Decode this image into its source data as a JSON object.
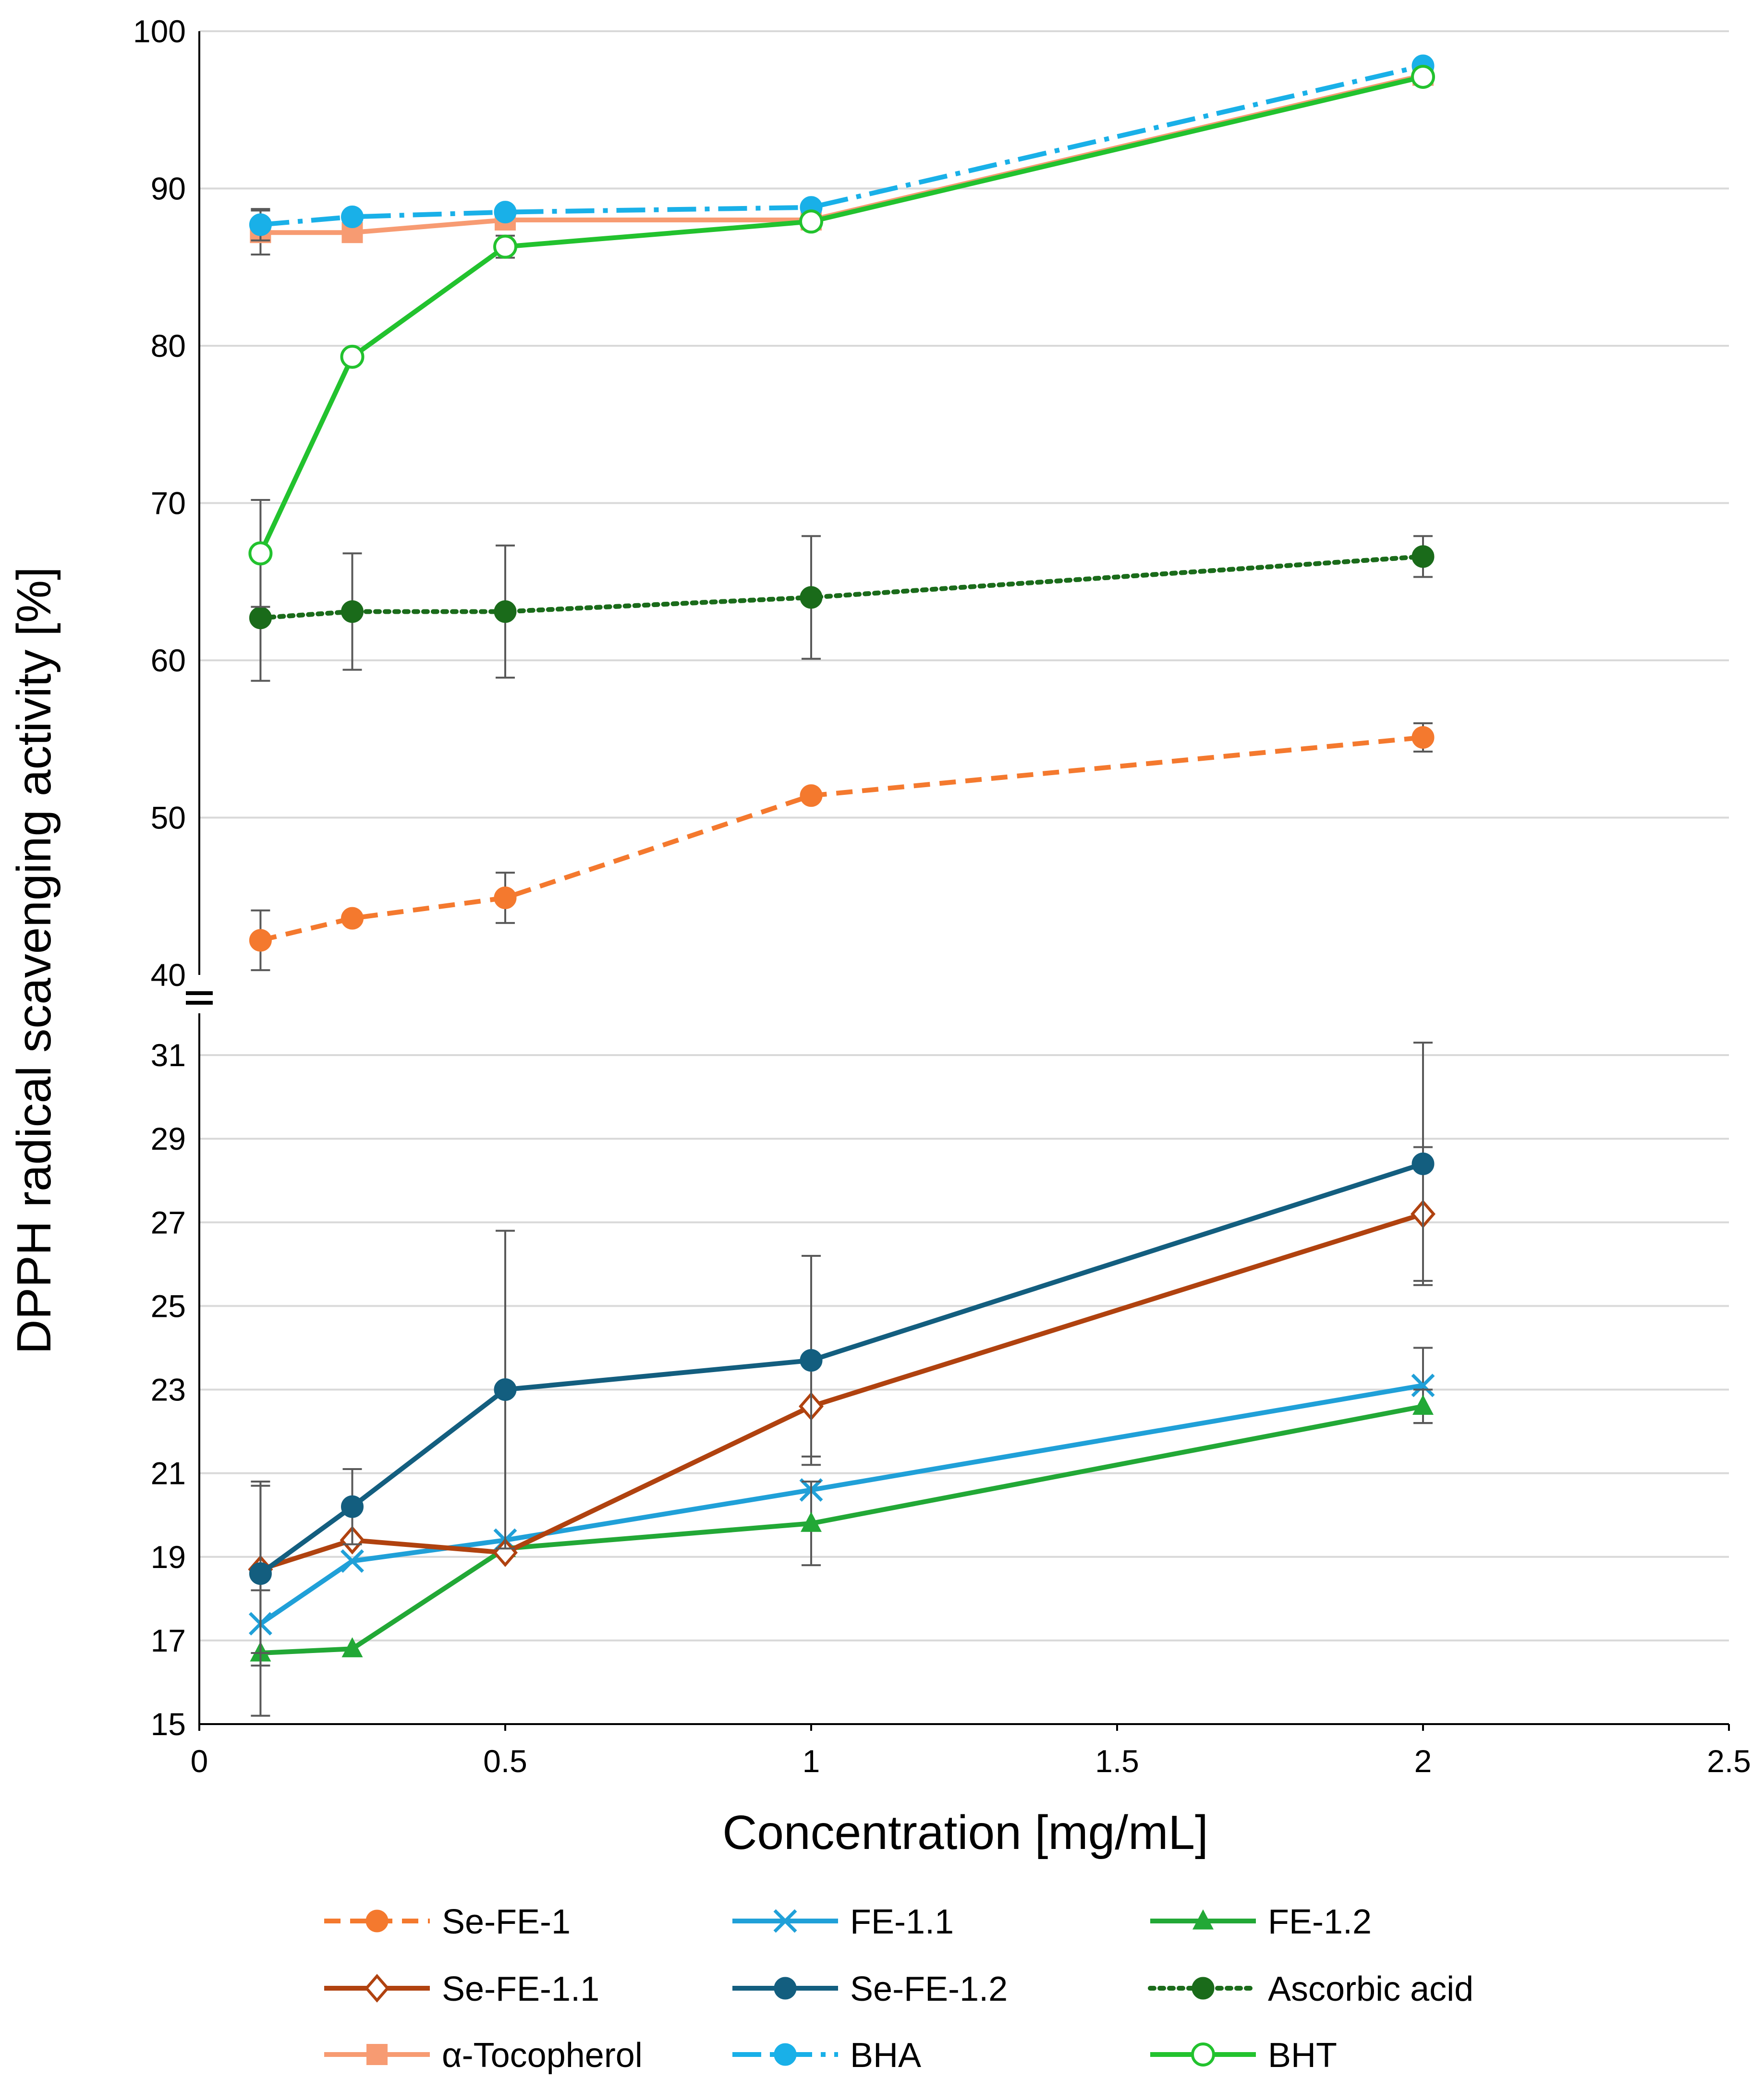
{
  "chart_data": {
    "type": "line",
    "xlabel": "Concentration [mg/mL]",
    "ylabel": "DPPH radical scavenging activity [%]",
    "xlim": [
      0,
      2.5
    ],
    "x_ticks": [
      "0",
      "0.5",
      "1",
      "1.5",
      "2",
      "2.5"
    ],
    "y_axis_break": true,
    "upper_panel": {
      "ylim": [
        40,
        100
      ],
      "y_ticks": [
        "40",
        "50",
        "60",
        "70",
        "80",
        "90",
        "100"
      ],
      "series": [
        {
          "name": "Se-FE-1",
          "color": "#f4792e",
          "line": "dashed",
          "marker": "circle-filled",
          "x": [
            0.1,
            0.25,
            0.5,
            1,
            2
          ],
          "y": [
            42.2,
            43.6,
            44.9,
            51.4,
            55.1
          ],
          "err": [
            1.9,
            0.0,
            1.6,
            0.0,
            0.9
          ]
        },
        {
          "name": "Ascorbic acid",
          "color": "#1a6b1a",
          "line": "dotted",
          "marker": "circle-filled",
          "x": [
            0.1,
            0.25,
            0.5,
            1,
            2
          ],
          "y": [
            62.7,
            63.1,
            63.1,
            64.0,
            66.6
          ],
          "err": [
            4.0,
            3.7,
            4.2,
            3.9,
            1.3
          ]
        },
        {
          "name": "α-Tocopherol",
          "color": "#f79b72",
          "line": "solid",
          "marker": "square-filled",
          "x": [
            0.1,
            0.25,
            0.5,
            1,
            2
          ],
          "y": [
            87.2,
            87.2,
            88.0,
            88.0,
            97.2
          ],
          "err": [
            1.4,
            0.0,
            0.0,
            0.0,
            0.0
          ]
        },
        {
          "name": "BHA",
          "color": "#19b0e8",
          "line": "dashdot",
          "marker": "circle-filled",
          "x": [
            0.1,
            0.25,
            0.5,
            1,
            2
          ],
          "y": [
            87.7,
            88.2,
            88.5,
            88.8,
            97.8
          ],
          "err": [
            1.0,
            0.0,
            0.0,
            0.0,
            0.0
          ]
        },
        {
          "name": "BHT",
          "color": "#22c22e",
          "line": "solid",
          "marker": "circle-open",
          "x": [
            0.1,
            0.25,
            0.5,
            1,
            2
          ],
          "y": [
            66.8,
            79.3,
            86.3,
            87.9,
            97.1
          ],
          "err": [
            3.4,
            0.0,
            0.7,
            0.0,
            0.0
          ]
        }
      ]
    },
    "lower_panel": {
      "ylim": [
        15,
        32
      ],
      "y_ticks": [
        "15",
        "17",
        "19",
        "21",
        "23",
        "25",
        "27",
        "29",
        "31"
      ],
      "series": [
        {
          "name": "FE-1.1",
          "color": "#20a0d8",
          "line": "solid",
          "marker": "x",
          "x": [
            0.1,
            0.25,
            0.5,
            1,
            2
          ],
          "y": [
            17.4,
            18.9,
            19.4,
            20.6,
            23.1
          ],
          "err": [
            0.0,
            0.0,
            0.0,
            0.0,
            0.9
          ]
        },
        {
          "name": "FE-1.2",
          "color": "#22a836",
          "line": "solid",
          "marker": "triangle-filled",
          "x": [
            0.1,
            0.25,
            0.5,
            1,
            2
          ],
          "y": [
            16.7,
            16.8,
            19.2,
            19.8,
            22.6
          ],
          "err": [
            1.5,
            0.0,
            0.0,
            1.0,
            0.4
          ]
        },
        {
          "name": "Se-FE-1.1",
          "color": "#b0420f",
          "line": "solid",
          "marker": "diamond-open",
          "x": [
            0.1,
            0.25,
            0.5,
            1,
            2
          ],
          "y": [
            18.7,
            19.4,
            19.1,
            22.6,
            27.2
          ],
          "err": [
            2.0,
            0.0,
            0.0,
            1.2,
            1.6
          ]
        },
        {
          "name": "Se-FE-1.2",
          "color": "#135e7f",
          "line": "solid",
          "marker": "circle-filled",
          "x": [
            0.1,
            0.25,
            0.5,
            1,
            2
          ],
          "y": [
            18.6,
            20.2,
            23.0,
            23.7,
            28.4
          ],
          "err": [
            2.2,
            0.9,
            3.8,
            2.5,
            2.9
          ]
        }
      ]
    },
    "legend": {
      "placement": "bottom",
      "order": [
        "Se-FE-1",
        "FE-1.1",
        "FE-1.2",
        "Se-FE-1.1",
        "Se-FE-1.2",
        "Ascorbic acid",
        "α-Tocopherol",
        "BHA",
        "BHT"
      ]
    }
  }
}
